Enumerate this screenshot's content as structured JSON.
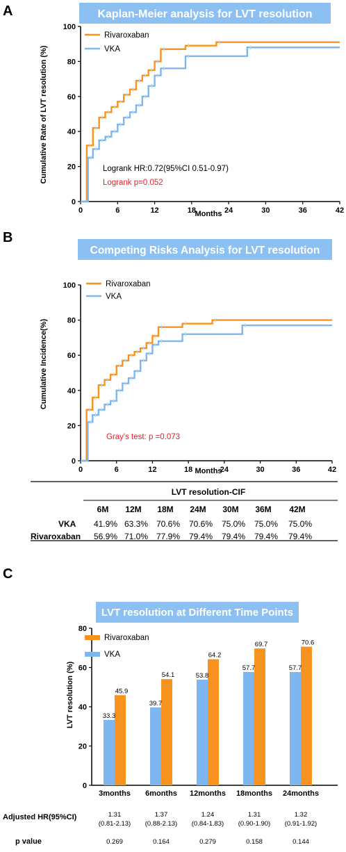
{
  "colors": {
    "rivaroxaban": "#F7931E",
    "vka": "#7EB6F0",
    "title_bg": "#8DC0F2",
    "red": "#E8202A"
  },
  "panelA": {
    "letter": "A",
    "title": "Kaplan-Meier analysis for LVT resolution",
    "ylabel": "Cumulative Rate of LVT resolution (%)",
    "xlabel": "Months",
    "legend": [
      "Rivaroxaban",
      "VKA"
    ],
    "annotation_hr": "Logrank HR:0.72(95%CI 0.51-0.97)",
    "annotation_p": "Logrank p=0.052"
  },
  "panelB": {
    "letter": "B",
    "title": "Competing Risks Analysis for LVT resolution",
    "ylabel": "Cumulative Incidence(%)",
    "xlabel": "Months",
    "legend": [
      "Rivaroxaban",
      "VKA"
    ],
    "annotation_p": "Gray's test: p =0.073"
  },
  "table": {
    "title": "LVT resolution-CIF",
    "columns": [
      "6M",
      "12M",
      "18M",
      "24M",
      "30M",
      "36M",
      "42M"
    ],
    "rows": [
      {
        "label": "VKA",
        "values": [
          "41.9%",
          "63.3%",
          "70.6%",
          "70.6%",
          "75.0%",
          "75.0%",
          "75.0%"
        ]
      },
      {
        "label": "Rivaroxaban",
        "values": [
          "56.9%",
          "71.0%",
          "77.9%",
          "79.4%",
          "79.4%",
          "79.4%",
          "79.4%"
        ]
      }
    ]
  },
  "panelC": {
    "letter": "C",
    "title": "LVT resolution at Different Time Points",
    "ylabel": "LVT resolution (%)",
    "legend": [
      "Rivaroxaban",
      "VKA"
    ],
    "hr_label": "Adjusted HR(95%CI)",
    "hr_values": [
      "1.31",
      "1.37",
      "1.24",
      "1.31",
      "1.32"
    ],
    "hr_ci": [
      "(0.81-2.13)",
      "(0.88-2.13)",
      "(0.84-1.83)",
      "(0.90-1.90)",
      "(0.91-1.92)"
    ],
    "p_label": "p value",
    "p_values": [
      "0.269",
      "0.164",
      "0.279",
      "0.158",
      "0.144"
    ]
  },
  "chart_data": [
    {
      "type": "line",
      "step": true,
      "title": "Kaplan-Meier analysis for LVT resolution",
      "xlabel": "Months",
      "ylabel": "Cumulative Rate of LVT resolution (%)",
      "xlim": [
        0,
        42
      ],
      "ylim": [
        0,
        100
      ],
      "xticks": [
        0,
        6,
        12,
        18,
        24,
        30,
        36,
        42
      ],
      "yticks": [
        0,
        20,
        40,
        60,
        80,
        100
      ],
      "legend_position": "top-left",
      "series": [
        {
          "name": "Rivaroxaban",
          "x": [
            0,
            0.8,
            1,
            2,
            3,
            4,
            5,
            6,
            7,
            8,
            9,
            10,
            11,
            12,
            13,
            17,
            22,
            42
          ],
          "y": [
            0,
            0,
            32,
            42,
            48,
            51,
            54,
            57,
            61,
            64,
            69,
            72,
            75,
            80,
            87,
            89,
            91,
            91
          ]
        },
        {
          "name": "VKA",
          "x": [
            0,
            1,
            1.2,
            2,
            3,
            4,
            5,
            6,
            7,
            8,
            9,
            10,
            11,
            12,
            13,
            17,
            27,
            42
          ],
          "y": [
            0,
            0,
            25,
            30,
            35,
            37,
            40,
            44,
            48,
            51,
            55,
            60,
            66,
            72,
            76,
            83,
            88,
            88
          ]
        }
      ],
      "annotations": [
        "Logrank HR:0.72(95%CI 0.51-0.97)",
        "Logrank p=0.052"
      ]
    },
    {
      "type": "line",
      "step": true,
      "title": "Competing Risks Analysis for LVT resolution",
      "xlabel": "Months",
      "ylabel": "Cumulative Incidence(%)",
      "xlim": [
        0,
        42
      ],
      "ylim": [
        0,
        100
      ],
      "xticks": [
        0,
        6,
        12,
        18,
        24,
        30,
        36,
        42
      ],
      "yticks": [
        0,
        20,
        40,
        60,
        80,
        100
      ],
      "legend_position": "top-left",
      "series": [
        {
          "name": "Rivaroxaban",
          "x": [
            0,
            0.8,
            1,
            2,
            3,
            4,
            5,
            6,
            7,
            8,
            9,
            10,
            11,
            12,
            13,
            17,
            22,
            42
          ],
          "y": [
            0,
            0,
            29,
            36,
            43,
            46,
            49,
            54,
            57,
            60,
            62,
            64,
            67,
            71,
            76,
            78,
            80,
            80
          ]
        },
        {
          "name": "VKA",
          "x": [
            0,
            1,
            1.2,
            2,
            3,
            4,
            5,
            6,
            7,
            8,
            9,
            10,
            11,
            12,
            13,
            17,
            27,
            42
          ],
          "y": [
            0,
            0,
            22,
            26,
            29,
            32,
            34,
            40,
            44,
            47,
            51,
            57,
            61,
            66,
            68,
            72,
            77,
            77
          ]
        }
      ],
      "annotations": [
        "Gray's test: p =0.073"
      ]
    },
    {
      "type": "bar",
      "title": "LVT resolution at Different Time Points",
      "xlabel": "",
      "ylabel": "LVT resolution (%)",
      "ylim": [
        0,
        80
      ],
      "yticks": [
        0,
        20,
        40,
        60,
        80
      ],
      "categories": [
        "3months",
        "6months",
        "12months",
        "18months",
        "24months"
      ],
      "legend_position": "top-left",
      "series": [
        {
          "name": "VKA",
          "values": [
            33.3,
            39.7,
            53.8,
            57.7,
            57.7
          ]
        },
        {
          "name": "Rivaroxaban",
          "values": [
            45.9,
            54.1,
            64.2,
            69.7,
            70.6
          ]
        }
      ]
    }
  ]
}
